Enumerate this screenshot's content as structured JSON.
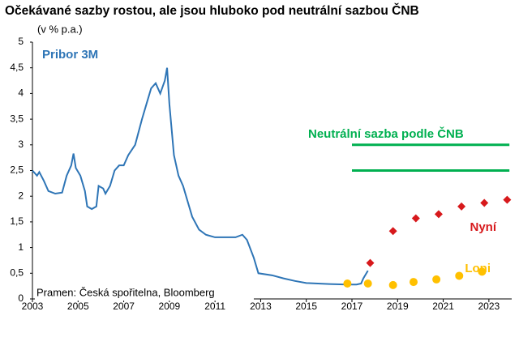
{
  "chart_data": {
    "type": "line",
    "title": "Očekávané sazby rostou, ale jsou hluboko pod neutrální sazbou ČNB",
    "subtitle": "(v % p.a.)",
    "source": "Pramen: Česká spořitelna, Bloomberg",
    "xlim": [
      2003,
      2024
    ],
    "xticks": [
      2003,
      2005,
      2007,
      2009,
      2011,
      2013,
      2015,
      2017,
      2019,
      2021,
      2023
    ],
    "ylim": [
      0,
      5
    ],
    "yticks": [
      0,
      {
        "value": 0.5,
        "label": "0,5"
      },
      1,
      {
        "value": 1.5,
        "label": "1,5"
      },
      2,
      {
        "value": 2.5,
        "label": "2,5"
      },
      3,
      {
        "value": 3.5,
        "label": "3,5"
      },
      4,
      {
        "value": 4.5,
        "label": "4,5"
      },
      5
    ],
    "series": [
      {
        "name": "Pribor 3M",
        "style": "line",
        "color": "#2e75b6",
        "x": [
          2003.0,
          2003.2,
          2003.3,
          2003.5,
          2003.7,
          2004.0,
          2004.3,
          2004.5,
          2004.7,
          2004.8,
          2004.9,
          2005.1,
          2005.3,
          2005.4,
          2005.6,
          2005.8,
          2005.9,
          2006.1,
          2006.2,
          2006.4,
          2006.6,
          2006.8,
          2007.0,
          2007.2,
          2007.5,
          2007.8,
          2008.0,
          2008.2,
          2008.4,
          2008.6,
          2008.8,
          2008.9,
          2009.0,
          2009.2,
          2009.4,
          2009.6,
          2009.8,
          2010.0,
          2010.3,
          2010.6,
          2011.0,
          2011.5,
          2011.9,
          2012.2,
          2012.4,
          2012.7,
          2012.9,
          2013.5,
          2014.0,
          2014.5,
          2015.0,
          2016.0,
          2016.8,
          2017.2,
          2017.4,
          2017.5,
          2017.7
        ],
        "values": [
          2.5,
          2.4,
          2.47,
          2.3,
          2.1,
          2.05,
          2.07,
          2.4,
          2.6,
          2.83,
          2.55,
          2.4,
          2.1,
          1.8,
          1.75,
          1.8,
          2.2,
          2.15,
          2.05,
          2.2,
          2.5,
          2.6,
          2.6,
          2.8,
          3.0,
          3.5,
          3.8,
          4.1,
          4.2,
          4.0,
          4.25,
          4.5,
          3.8,
          2.8,
          2.4,
          2.2,
          1.9,
          1.6,
          1.35,
          1.25,
          1.2,
          1.2,
          1.2,
          1.25,
          1.15,
          0.8,
          0.5,
          0.46,
          0.4,
          0.35,
          0.31,
          0.29,
          0.28,
          0.28,
          0.3,
          0.4,
          0.55
        ]
      },
      {
        "name": "Nyní",
        "style": "diamond",
        "color": "#d7191c",
        "x": [
          2017.8,
          2018.8,
          2019.8,
          2020.8,
          2021.8,
          2022.8,
          2023.8
        ],
        "values": [
          0.7,
          1.32,
          1.57,
          1.65,
          1.8,
          1.87,
          1.93
        ]
      },
      {
        "name": "Loni",
        "style": "dot",
        "color": "#ffc000",
        "x": [
          2016.8,
          2017.7,
          2018.8,
          2019.7,
          2020.7,
          2021.7,
          2022.7
        ],
        "values": [
          0.3,
          0.3,
          0.27,
          0.33,
          0.38,
          0.45,
          0.53
        ]
      },
      {
        "name": "Neutrální sazba podle ČNB",
        "style": "levels",
        "color": "#00b050",
        "x": [
          2017,
          2023.9
        ],
        "levels": [
          2.5,
          3
        ]
      }
    ]
  }
}
